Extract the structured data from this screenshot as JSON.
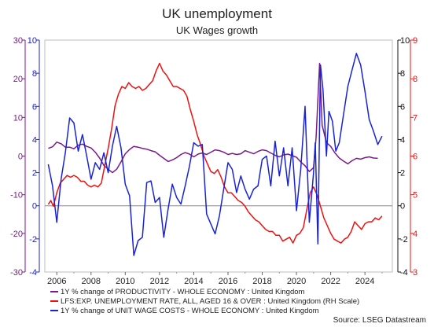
{
  "title": "UK unemployment",
  "subtitle": "UK Wages growth",
  "source": "Source: LSEG Datastream",
  "colors": {
    "productivity": "#7b1a8a",
    "unemployment": "#ee1111",
    "ulc": "#1a22d6"
  },
  "chart_data": {
    "type": "line",
    "title": "UK unemployment",
    "subtitle": "UK Wages growth",
    "x_range": [
      2005.3,
      2025.6
    ],
    "x_ticks": [
      2006,
      2008,
      2010,
      2012,
      2014,
      2016,
      2018,
      2020,
      2022,
      2024
    ],
    "grid": false,
    "axes": {
      "left_outer": {
        "range": [
          -30,
          30
        ],
        "ticks": [
          -30,
          -20,
          -10,
          0,
          10,
          20,
          30
        ],
        "color": "#7b1a8a",
        "series": "productivity"
      },
      "left_inner": {
        "range": [
          -4,
          10
        ],
        "ticks": [
          -4,
          -2,
          0,
          2,
          4,
          6,
          8,
          10
        ],
        "color": "#1a22d6",
        "series": "unit_wage_costs"
      },
      "right_inner": {
        "range": [
          -4,
          10
        ],
        "ticks": [
          -4,
          -2,
          0,
          2,
          4,
          6,
          8,
          10
        ],
        "color": "#111111"
      },
      "right_outer": {
        "range": [
          3,
          9
        ],
        "ticks": [
          3,
          4,
          5,
          6,
          7,
          8,
          9
        ],
        "color": "#ee1111",
        "series": "unemployment"
      }
    },
    "zero_line": 0,
    "series": [
      {
        "key": "productivity",
        "name": "1Y % change of PRODUCTIVITY - WHOLE ECONOMY : United Kingdom",
        "axis": "left_outer",
        "color": "#7b1a8a",
        "points": [
          [
            2005.5,
            2.0
          ],
          [
            2005.75,
            2.4
          ],
          [
            2006.0,
            3.6
          ],
          [
            2006.25,
            3.2
          ],
          [
            2006.5,
            2.3
          ],
          [
            2006.75,
            2.3
          ],
          [
            2007.0,
            1.9
          ],
          [
            2007.25,
            2.8
          ],
          [
            2007.5,
            3.1
          ],
          [
            2007.75,
            2.5
          ],
          [
            2008.0,
            2.1
          ],
          [
            2008.25,
            1.0
          ],
          [
            2008.5,
            -0.5
          ],
          [
            2008.75,
            -2.4
          ],
          [
            2009.0,
            -3.4
          ],
          [
            2009.25,
            -4.3
          ],
          [
            2009.5,
            -3.4
          ],
          [
            2009.75,
            -1.5
          ],
          [
            2010.0,
            0.6
          ],
          [
            2010.25,
            1.7
          ],
          [
            2010.5,
            2.5
          ],
          [
            2010.75,
            2.3
          ],
          [
            2011.0,
            2.0
          ],
          [
            2011.25,
            1.8
          ],
          [
            2011.5,
            1.4
          ],
          [
            2011.75,
            1.1
          ],
          [
            2012.0,
            0.2
          ],
          [
            2012.25,
            -0.6
          ],
          [
            2012.5,
            -1.4
          ],
          [
            2012.75,
            -1.0
          ],
          [
            2013.0,
            -0.4
          ],
          [
            2013.25,
            0.4
          ],
          [
            2013.5,
            0.9
          ],
          [
            2013.75,
            0.5
          ],
          [
            2014.0,
            -0.2
          ],
          [
            2014.25,
            0.5
          ],
          [
            2014.5,
            0.8
          ],
          [
            2014.75,
            0.4
          ],
          [
            2015.0,
            1.0
          ],
          [
            2015.25,
            1.6
          ],
          [
            2015.5,
            1.4
          ],
          [
            2015.75,
            1.0
          ],
          [
            2016.0,
            0.4
          ],
          [
            2016.25,
            0.7
          ],
          [
            2016.5,
            0.4
          ],
          [
            2016.75,
            0.6
          ],
          [
            2017.0,
            1.4
          ],
          [
            2017.25,
            1.0
          ],
          [
            2017.5,
            0.6
          ],
          [
            2017.75,
            1.2
          ],
          [
            2018.0,
            1.6
          ],
          [
            2018.25,
            1.4
          ],
          [
            2018.5,
            0.8
          ],
          [
            2018.75,
            0.2
          ],
          [
            2019.0,
            -0.2
          ],
          [
            2019.25,
            0.3
          ],
          [
            2019.5,
            0.5
          ],
          [
            2019.75,
            0.1
          ],
          [
            2020.0,
            -0.3
          ],
          [
            2020.25,
            -1.5
          ],
          [
            2020.5,
            -2.5
          ],
          [
            2020.75,
            -4.0
          ],
          [
            2021.0,
            -3.0
          ],
          [
            2021.15,
            5.0
          ],
          [
            2021.35,
            24.0
          ],
          [
            2021.5,
            8.0
          ],
          [
            2021.75,
            3.5
          ],
          [
            2022.0,
            2.5
          ],
          [
            2022.25,
            0.8
          ],
          [
            2022.5,
            -0.5
          ],
          [
            2022.75,
            -1.3
          ],
          [
            2023.0,
            -2.0
          ],
          [
            2023.25,
            -1.2
          ],
          [
            2023.5,
            -0.6
          ],
          [
            2023.75,
            -0.8
          ],
          [
            2024.0,
            -0.4
          ],
          [
            2024.25,
            -0.2
          ],
          [
            2024.5,
            -0.5
          ],
          [
            2024.75,
            -0.6
          ]
        ]
      },
      {
        "key": "unemployment",
        "name": "LFS:EXP. UNEMPLOYMENT RATE, ALL, AGED 16 & OVER : United Kingdom (RH Scale)",
        "axis": "right_outer",
        "color": "#ee1111",
        "points": [
          [
            2005.5,
            4.75
          ],
          [
            2005.65,
            4.85
          ],
          [
            2005.8,
            4.7
          ],
          [
            2006.0,
            5.05
          ],
          [
            2006.2,
            5.3
          ],
          [
            2006.4,
            5.4
          ],
          [
            2006.6,
            5.5
          ],
          [
            2006.8,
            5.45
          ],
          [
            2007.0,
            5.5
          ],
          [
            2007.2,
            5.45
          ],
          [
            2007.4,
            5.35
          ],
          [
            2007.6,
            5.35
          ],
          [
            2007.8,
            5.25
          ],
          [
            2008.0,
            5.2
          ],
          [
            2008.2,
            5.25
          ],
          [
            2008.4,
            5.2
          ],
          [
            2008.6,
            5.3
          ],
          [
            2008.8,
            5.75
          ],
          [
            2009.0,
            6.2
          ],
          [
            2009.2,
            6.7
          ],
          [
            2009.4,
            7.3
          ],
          [
            2009.6,
            7.6
          ],
          [
            2009.8,
            7.8
          ],
          [
            2010.0,
            7.75
          ],
          [
            2010.2,
            7.9
          ],
          [
            2010.4,
            7.8
          ],
          [
            2010.6,
            7.75
          ],
          [
            2010.8,
            7.8
          ],
          [
            2011.0,
            7.7
          ],
          [
            2011.2,
            7.75
          ],
          [
            2011.4,
            7.85
          ],
          [
            2011.6,
            7.95
          ],
          [
            2011.8,
            8.2
          ],
          [
            2012.0,
            8.4
          ],
          [
            2012.2,
            8.2
          ],
          [
            2012.4,
            8.1
          ],
          [
            2012.6,
            7.95
          ],
          [
            2012.8,
            7.8
          ],
          [
            2013.0,
            7.8
          ],
          [
            2013.2,
            7.75
          ],
          [
            2013.4,
            7.7
          ],
          [
            2013.6,
            7.55
          ],
          [
            2013.8,
            7.2
          ],
          [
            2014.0,
            6.9
          ],
          [
            2014.2,
            6.55
          ],
          [
            2014.4,
            6.3
          ],
          [
            2014.6,
            6.0
          ],
          [
            2014.8,
            5.8
          ],
          [
            2015.0,
            5.6
          ],
          [
            2015.2,
            5.55
          ],
          [
            2015.4,
            5.65
          ],
          [
            2015.6,
            5.45
          ],
          [
            2015.8,
            5.2
          ],
          [
            2016.0,
            5.05
          ],
          [
            2016.2,
            5.05
          ],
          [
            2016.4,
            4.95
          ],
          [
            2016.6,
            4.85
          ],
          [
            2016.8,
            4.8
          ],
          [
            2017.0,
            4.7
          ],
          [
            2017.2,
            4.55
          ],
          [
            2017.4,
            4.45
          ],
          [
            2017.6,
            4.35
          ],
          [
            2017.8,
            4.3
          ],
          [
            2018.0,
            4.2
          ],
          [
            2018.2,
            4.1
          ],
          [
            2018.4,
            4.05
          ],
          [
            2018.6,
            4.05
          ],
          [
            2018.8,
            3.95
          ],
          [
            2019.0,
            3.95
          ],
          [
            2019.2,
            3.8
          ],
          [
            2019.4,
            3.85
          ],
          [
            2019.6,
            3.9
          ],
          [
            2019.8,
            3.75
          ],
          [
            2020.0,
            3.95
          ],
          [
            2020.2,
            4.0
          ],
          [
            2020.4,
            4.15
          ],
          [
            2020.6,
            4.6
          ],
          [
            2020.8,
            5.05
          ],
          [
            2021.0,
            5.2
          ],
          [
            2021.2,
            5.0
          ],
          [
            2021.4,
            4.7
          ],
          [
            2021.6,
            4.4
          ],
          [
            2021.8,
            4.2
          ],
          [
            2022.0,
            4.0
          ],
          [
            2022.2,
            3.85
          ],
          [
            2022.4,
            3.8
          ],
          [
            2022.6,
            3.75
          ],
          [
            2022.8,
            3.85
          ],
          [
            2023.0,
            3.9
          ],
          [
            2023.2,
            4.05
          ],
          [
            2023.4,
            4.3
          ],
          [
            2023.6,
            4.2
          ],
          [
            2023.8,
            4.1
          ],
          [
            2024.0,
            4.25
          ],
          [
            2024.2,
            4.3
          ],
          [
            2024.4,
            4.3
          ],
          [
            2024.6,
            4.4
          ],
          [
            2024.8,
            4.35
          ],
          [
            2025.0,
            4.45
          ]
        ]
      },
      {
        "key": "unit_wage_costs",
        "name": "1Y % change of UNIT WAGE COSTS - WHOLE ECONOMY : United Kingdom",
        "axis": "left_inner",
        "color": "#1a22d6",
        "points": [
          [
            2005.5,
            2.5
          ],
          [
            2005.75,
            1.2
          ],
          [
            2006.0,
            -1.0
          ],
          [
            2006.25,
            1.6
          ],
          [
            2006.5,
            3.2
          ],
          [
            2006.75,
            5.3
          ],
          [
            2007.0,
            5.0
          ],
          [
            2007.25,
            3.3
          ],
          [
            2007.5,
            4.3
          ],
          [
            2007.75,
            3.0
          ],
          [
            2008.0,
            1.6
          ],
          [
            2008.25,
            2.6
          ],
          [
            2008.5,
            2.2
          ],
          [
            2008.75,
            3.2
          ],
          [
            2009.0,
            2.0
          ],
          [
            2009.25,
            3.6
          ],
          [
            2009.5,
            4.8
          ],
          [
            2009.75,
            3.5
          ],
          [
            2010.0,
            1.3
          ],
          [
            2010.25,
            0.6
          ],
          [
            2010.5,
            -3.0
          ],
          [
            2010.75,
            -2.1
          ],
          [
            2011.0,
            -1.9
          ],
          [
            2011.25,
            1.4
          ],
          [
            2011.5,
            1.5
          ],
          [
            2011.75,
            0.2
          ],
          [
            2012.0,
            0.5
          ],
          [
            2012.25,
            -1.9
          ],
          [
            2012.5,
            -0.2
          ],
          [
            2012.75,
            1.3
          ],
          [
            2013.0,
            0.5
          ],
          [
            2013.25,
            0.1
          ],
          [
            2013.5,
            1.2
          ],
          [
            2013.75,
            2.4
          ],
          [
            2014.0,
            3.8
          ],
          [
            2014.25,
            3.6
          ],
          [
            2014.5,
            3.7
          ],
          [
            2014.75,
            -0.5
          ],
          [
            2015.0,
            -1.1
          ],
          [
            2015.25,
            -1.7
          ],
          [
            2015.5,
            -0.6
          ],
          [
            2015.75,
            1.0
          ],
          [
            2016.0,
            2.6
          ],
          [
            2016.25,
            2.2
          ],
          [
            2016.5,
            0.8
          ],
          [
            2016.75,
            1.8
          ],
          [
            2017.0,
            1.0
          ],
          [
            2017.25,
            0.4
          ],
          [
            2017.5,
            1.0
          ],
          [
            2017.75,
            1.2
          ],
          [
            2018.0,
            2.8
          ],
          [
            2018.25,
            3.0
          ],
          [
            2018.5,
            1.2
          ],
          [
            2018.75,
            3.9
          ],
          [
            2019.0,
            1.8
          ],
          [
            2019.25,
            3.5
          ],
          [
            2019.5,
            1.2
          ],
          [
            2019.75,
            3.5
          ],
          [
            2020.0,
            -0.3
          ],
          [
            2020.25,
            2.2
          ],
          [
            2020.5,
            6.0
          ],
          [
            2020.75,
            -1.0
          ],
          [
            2021.0,
            2.0
          ],
          [
            2021.1,
            3.8
          ],
          [
            2021.25,
            -2.3
          ],
          [
            2021.4,
            8.5
          ],
          [
            2021.55,
            7.0
          ],
          [
            2021.75,
            3.0
          ],
          [
            2021.9,
            5.7
          ],
          [
            2022.1,
            5.1
          ],
          [
            2022.3,
            3.3
          ],
          [
            2022.5,
            3.8
          ],
          [
            2022.75,
            5.5
          ],
          [
            2023.0,
            7.2
          ],
          [
            2023.25,
            8.2
          ],
          [
            2023.5,
            9.2
          ],
          [
            2023.75,
            8.5
          ],
          [
            2024.0,
            6.9
          ],
          [
            2024.25,
            5.2
          ],
          [
            2024.5,
            4.5
          ],
          [
            2024.75,
            3.7
          ],
          [
            2025.0,
            4.2
          ]
        ]
      }
    ],
    "legend": {
      "placement": "bottom-left"
    }
  }
}
